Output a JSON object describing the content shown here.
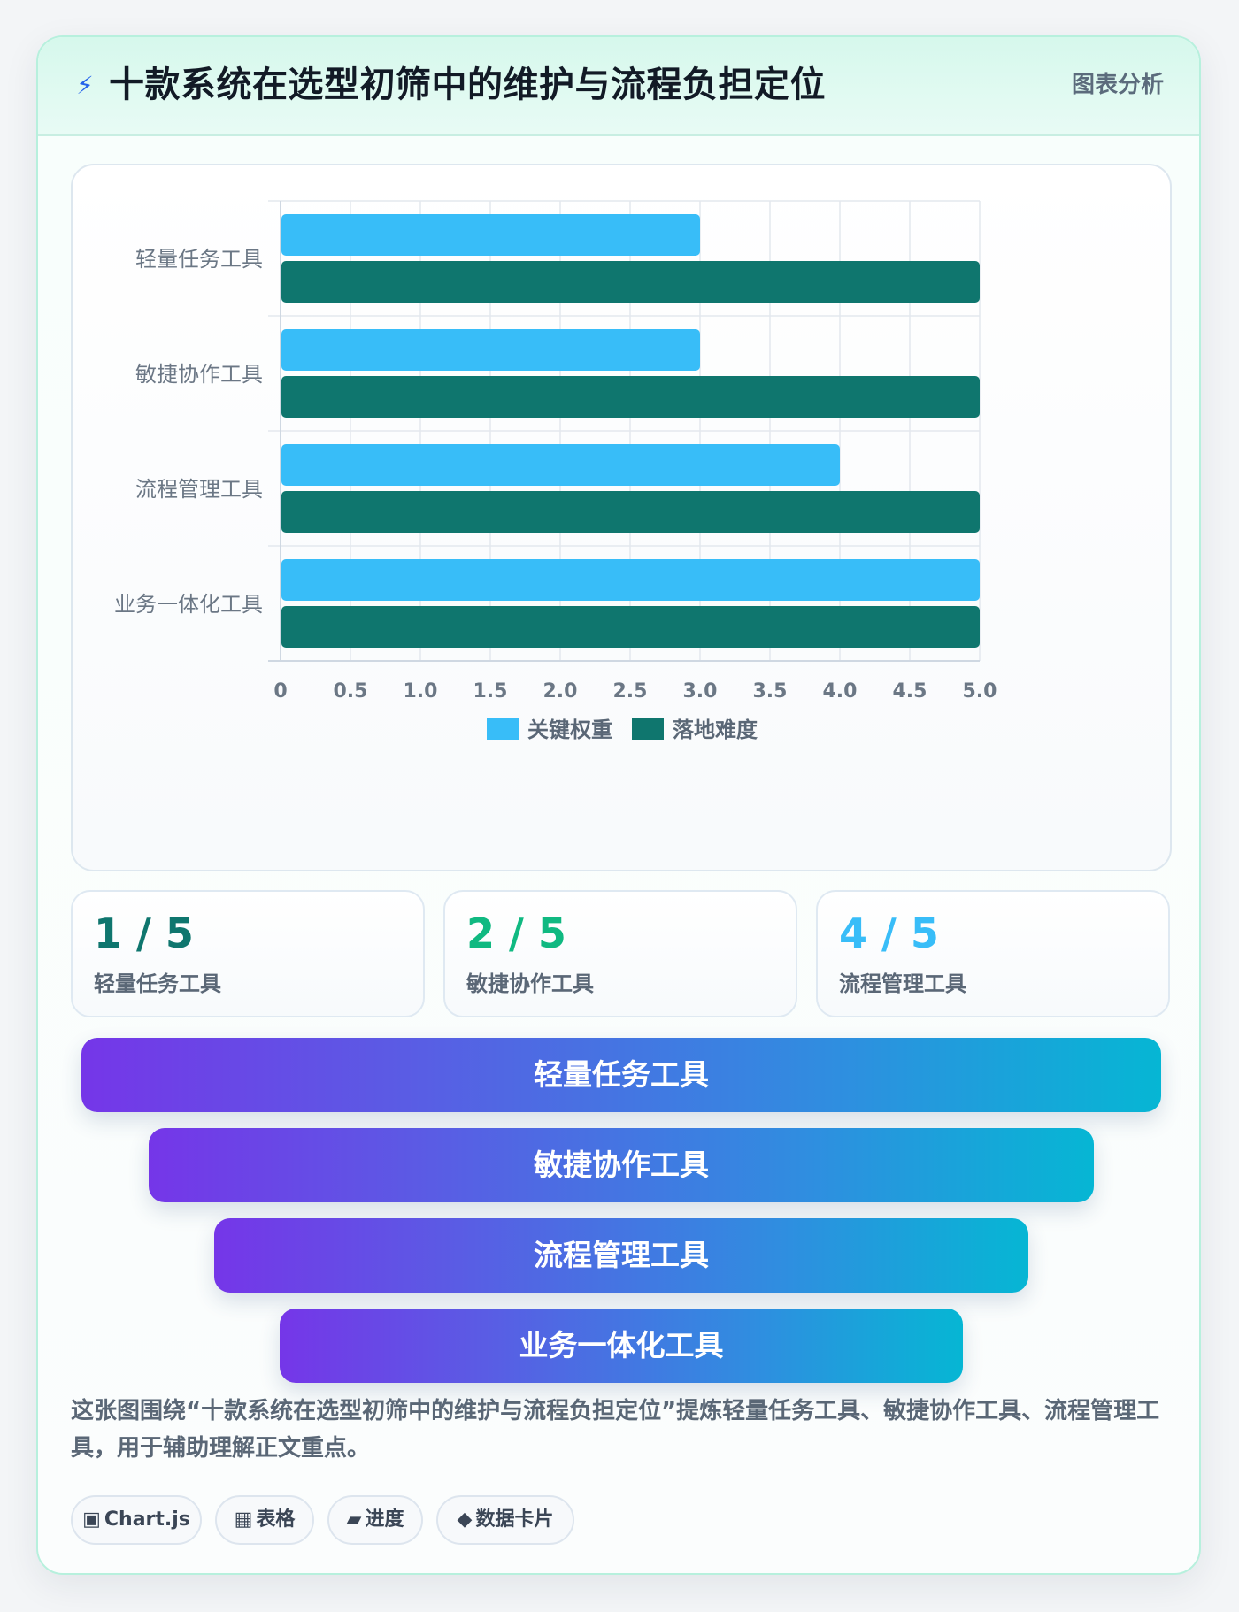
{
  "header": {
    "icon": "lightning-icon",
    "icon_glyph": "⚡",
    "title": "十款系统在选型初筛中的维护与流程负担定位",
    "tag": "图表分析"
  },
  "chart_data": {
    "type": "bar",
    "orientation": "horizontal",
    "categories": [
      "轻量任务工具",
      "敏捷协作工具",
      "流程管理工具",
      "业务一体化工具"
    ],
    "series": [
      {
        "name": "关键权重",
        "values": [
          3,
          3,
          4,
          5
        ],
        "color": "#38bdf8"
      },
      {
        "name": "落地难度",
        "values": [
          5,
          5,
          5,
          5
        ],
        "color": "#0f766e"
      }
    ],
    "xlim": [
      0,
      5
    ],
    "xticks": [
      "0",
      "0.5",
      "1.0",
      "1.5",
      "2.0",
      "2.5",
      "3.0",
      "3.5",
      "4.0",
      "4.5",
      "5.0"
    ],
    "grid": true,
    "legend": "bottom"
  },
  "stats": [
    {
      "value": "1 / 5",
      "label": "轻量任务工具",
      "color": "#0f766e"
    },
    {
      "value": "2 / 5",
      "label": "敏捷协作工具",
      "color": "#10b981"
    },
    {
      "value": "4 / 5",
      "label": "流程管理工具",
      "color": "#38bdf8"
    }
  ],
  "funnel": [
    {
      "label": "轻量任务工具"
    },
    {
      "label": "敏捷协作工具"
    },
    {
      "label": "流程管理工具"
    },
    {
      "label": "业务一体化工具"
    }
  ],
  "description": "这张图围绕“十款系统在选型初筛中的维护与流程负担定位”提炼轻量任务工具、敏捷协作工具、流程管理工具，用于辅助理解正文重点。",
  "chips": [
    {
      "icon": "chart-icon",
      "glyph": "▣",
      "label": "Chart.js"
    },
    {
      "icon": "table-icon",
      "glyph": "▦",
      "label": "表格"
    },
    {
      "icon": "progress-icon",
      "glyph": "▰",
      "label": "进度"
    },
    {
      "icon": "diamond-icon",
      "glyph": "◆",
      "label": "数据卡片"
    }
  ]
}
